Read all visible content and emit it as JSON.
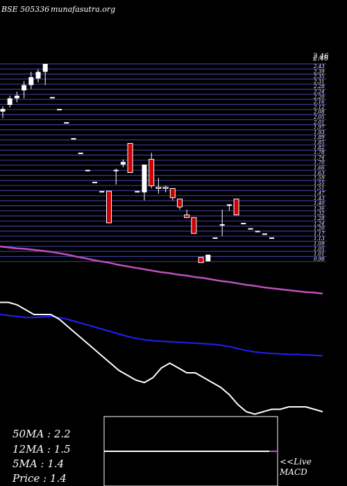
{
  "header": {
    "exchange_code": "BSE 505336",
    "site": "munafasutra.org"
  },
  "colors": {
    "background": "#000000",
    "grid": "#3a3a9a",
    "bull_candle": "#ffffff",
    "bear_candle": "#cc0000",
    "ma50": "#c050c0",
    "ma12": "#2020ff",
    "ma5": "#ffffff",
    "macd_box_border": "#ffffff",
    "macd_line": "#ffffff",
    "macd_signal": "#c050c0"
  },
  "chart_data": [
    {
      "type": "candlestick",
      "title": "BSE 505336",
      "price_axis_top_labels": [
        "2.46",
        "2.46"
      ],
      "ohlc": [
        {
          "o": 2.1,
          "h": 2.14,
          "l": 2.05,
          "c": 2.12
        },
        {
          "o": 2.15,
          "h": 2.22,
          "l": 2.13,
          "c": 2.2
        },
        {
          "o": 2.2,
          "h": 2.25,
          "l": 2.17,
          "c": 2.22
        },
        {
          "o": 2.26,
          "h": 2.33,
          "l": 2.2,
          "c": 2.3
        },
        {
          "o": 2.3,
          "h": 2.4,
          "l": 2.27,
          "c": 2.36
        },
        {
          "o": 2.35,
          "h": 2.42,
          "l": 2.32,
          "c": 2.4
        },
        {
          "o": 2.4,
          "h": 2.46,
          "l": 2.3,
          "c": 2.46
        },
        {
          "o": 2.21,
          "h": 2.21,
          "l": 2.21,
          "c": 2.21
        },
        {
          "o": 2.12,
          "h": 2.12,
          "l": 2.12,
          "c": 2.12
        },
        {
          "o": 2.02,
          "h": 2.02,
          "l": 2.02,
          "c": 2.02
        },
        {
          "o": 1.9,
          "h": 1.9,
          "l": 1.9,
          "c": 1.9
        },
        {
          "o": 1.79,
          "h": 1.79,
          "l": 1.79,
          "c": 1.79
        },
        {
          "o": 1.66,
          "h": 1.66,
          "l": 1.66,
          "c": 1.66
        },
        {
          "o": 1.57,
          "h": 1.57,
          "l": 1.57,
          "c": 1.57
        },
        {
          "o": 1.5,
          "h": 1.5,
          "l": 1.5,
          "c": 1.5
        },
        {
          "o": 1.5,
          "h": 1.5,
          "l": 1.26,
          "c": 1.26
        },
        {
          "o": 1.66,
          "h": 1.67,
          "l": 1.55,
          "c": 1.66
        },
        {
          "o": 1.7,
          "h": 1.74,
          "l": 1.68,
          "c": 1.72
        },
        {
          "o": 1.86,
          "h": 1.86,
          "l": 1.64,
          "c": 1.64
        },
        {
          "o": 1.5,
          "h": 1.5,
          "l": 1.5,
          "c": 1.5
        },
        {
          "o": 1.49,
          "h": 1.7,
          "l": 1.43,
          "c": 1.7
        },
        {
          "o": 1.74,
          "h": 1.79,
          "l": 1.52,
          "c": 1.54
        },
        {
          "o": 1.53,
          "h": 1.6,
          "l": 1.48,
          "c": 1.52
        },
        {
          "o": 1.53,
          "h": 1.54,
          "l": 1.49,
          "c": 1.52
        },
        {
          "o": 1.52,
          "h": 1.52,
          "l": 1.43,
          "c": 1.45
        },
        {
          "o": 1.44,
          "h": 1.44,
          "l": 1.36,
          "c": 1.38
        },
        {
          "o": 1.32,
          "h": 1.36,
          "l": 1.3,
          "c": 1.3
        },
        {
          "o": 1.3,
          "h": 1.3,
          "l": 1.18,
          "c": 1.18
        },
        {
          "o": 1.0,
          "h": 1.0,
          "l": 0.96,
          "c": 0.96
        },
        {
          "o": 0.97,
          "h": 1.02,
          "l": 0.97,
          "c": 1.02
        },
        {
          "o": 1.15,
          "h": 1.15,
          "l": 1.15,
          "c": 1.15
        },
        {
          "o": 1.25,
          "h": 1.36,
          "l": 1.16,
          "c": 1.25
        },
        {
          "o": 1.4,
          "h": 1.4,
          "l": 1.35,
          "c": 1.4
        },
        {
          "o": 1.44,
          "h": 1.44,
          "l": 1.32,
          "c": 1.32
        },
        {
          "o": 1.26,
          "h": 1.26,
          "l": 1.26,
          "c": 1.26
        },
        {
          "o": 1.22,
          "h": 1.22,
          "l": 1.22,
          "c": 1.22
        },
        {
          "o": 1.2,
          "h": 1.2,
          "l": 1.2,
          "c": 1.2
        },
        {
          "o": 1.18,
          "h": 1.18,
          "l": 1.18,
          "c": 1.18
        },
        {
          "o": 1.15,
          "h": 1.15,
          "l": 1.15,
          "c": 1.15
        }
      ],
      "ma50": [
        1.4,
        1.38,
        1.36,
        1.35,
        1.33,
        1.31,
        1.29,
        1.26,
        1.23,
        1.19,
        1.16,
        1.12,
        1.09,
        1.06,
        1.02,
        0.99,
        0.96,
        0.93,
        0.9,
        0.87,
        0.85,
        0.82,
        0.8,
        0.77,
        0.75,
        0.72,
        0.69,
        0.67,
        0.64,
        0.61,
        0.59,
        0.56,
        0.54,
        0.52,
        0.5,
        0.48,
        0.46,
        0.45,
        0.43
      ],
      "ma12": [
        0.0,
        -0.02,
        -0.04,
        -0.06,
        -0.06,
        -0.05,
        -0.04,
        -0.06,
        -0.1,
        -0.15,
        -0.2,
        -0.25,
        -0.3,
        -0.35,
        -0.4,
        -0.45,
        -0.49,
        -0.52,
        -0.54,
        -0.55,
        -0.56,
        -0.57,
        -0.58,
        -0.59,
        -0.6,
        -0.61,
        -0.63,
        -0.66,
        -0.7,
        -0.74,
        -0.77,
        -0.79,
        -0.8,
        -0.81,
        -0.82,
        -0.82,
        -0.83,
        -0.84,
        -0.85
      ],
      "ma5": [
        0.25,
        0.25,
        0.2,
        0.1,
        0.0,
        0.0,
        0.0,
        -0.1,
        -0.25,
        -0.4,
        -0.55,
        -0.7,
        -0.85,
        -1.0,
        -1.15,
        -1.25,
        -1.35,
        -1.4,
        -1.3,
        -1.1,
        -1.0,
        -1.1,
        -1.2,
        -1.2,
        -1.3,
        -1.4,
        -1.5,
        -1.65,
        -1.85,
        -2.0,
        -2.05,
        -2.0,
        -1.95,
        -1.95,
        -1.9,
        -1.9,
        -1.9,
        -1.95,
        -2.0
      ]
    },
    {
      "type": "line",
      "title": "MACD",
      "macd": [
        0.0,
        0.0,
        0.0,
        0.0,
        0.0,
        0.0,
        0.0,
        0.0,
        0.0,
        0.0
      ],
      "signal": [
        0.0,
        0.0,
        0.0,
        0.0,
        0.0,
        0.0,
        0.0,
        0.0,
        0.0,
        0.0
      ]
    }
  ],
  "stats": [
    {
      "label": "50MA",
      "value": "2.2"
    },
    {
      "label": "12MA",
      "value": "1.5"
    },
    {
      "label": "5MA",
      "value": "1.4"
    },
    {
      "label": "Price",
      "value": "1.4"
    }
  ],
  "live_label": "<<Live",
  "macd_label": "MACD"
}
